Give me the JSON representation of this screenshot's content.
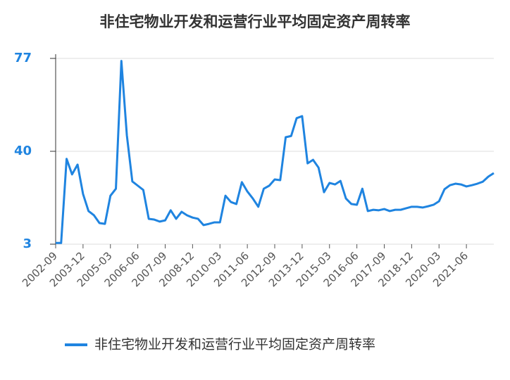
{
  "chart_data": {
    "type": "line",
    "title": "非住宅物业开发和运营行业平均固定资产周转率",
    "categories": [
      "2002-09",
      null,
      null,
      null,
      null,
      "2003-12",
      null,
      null,
      null,
      null,
      "2005-03",
      null,
      null,
      null,
      null,
      "2006-06",
      null,
      null,
      null,
      null,
      "2007-09",
      null,
      null,
      null,
      null,
      "2008-12",
      null,
      null,
      null,
      null,
      "2010-03",
      null,
      null,
      null,
      null,
      "2011-06",
      null,
      null,
      null,
      null,
      "2012-09",
      null,
      null,
      null,
      null,
      "2013-12",
      null,
      null,
      null,
      null,
      "2015-03",
      null,
      null,
      null,
      null,
      "2016-06",
      null,
      null,
      null,
      null,
      "2017-09",
      null,
      null,
      null,
      null,
      "2018-12",
      null,
      null,
      null,
      null,
      "2020-03",
      null,
      null,
      null,
      null,
      "2021-06",
      null,
      null,
      null,
      null,
      null
    ],
    "series": [
      {
        "name": "非住宅物业开发和运营行业平均固定资产周转率",
        "color": "#1f84e0",
        "values": [
          3.5,
          3.5,
          37,
          30.8,
          34.7,
          23,
          16.2,
          14.5,
          11.4,
          11.1,
          22.3,
          25.1,
          76,
          46.4,
          28,
          26.3,
          24.6,
          13.1,
          12.8,
          12,
          12.5,
          16.5,
          13.1,
          15.9,
          14.5,
          13.6,
          13.1,
          10.6,
          11.1,
          11.7,
          11.7,
          22.3,
          19.8,
          19,
          27.7,
          24,
          21.2,
          17.9,
          25.1,
          26.3,
          28.8,
          28.5,
          45.6,
          46.1,
          53.2,
          54,
          35.2,
          36.6,
          33.5,
          23.7,
          27.4,
          26.8,
          28.2,
          21.2,
          19,
          18.7,
          25.1,
          16.2,
          16.7,
          16.5,
          17,
          16.2,
          16.7,
          16.7,
          17.3,
          17.9,
          17.9,
          17.6,
          18.1,
          18.7,
          20.1,
          24.9,
          26.5,
          27.1,
          26.8,
          26,
          26.5,
          27.1,
          27.9,
          29.9,
          31.3
        ]
      }
    ],
    "ylim": [
      3,
      77
    ],
    "yticks": [
      3,
      40,
      77
    ],
    "grid": true,
    "legend": "bottom"
  }
}
